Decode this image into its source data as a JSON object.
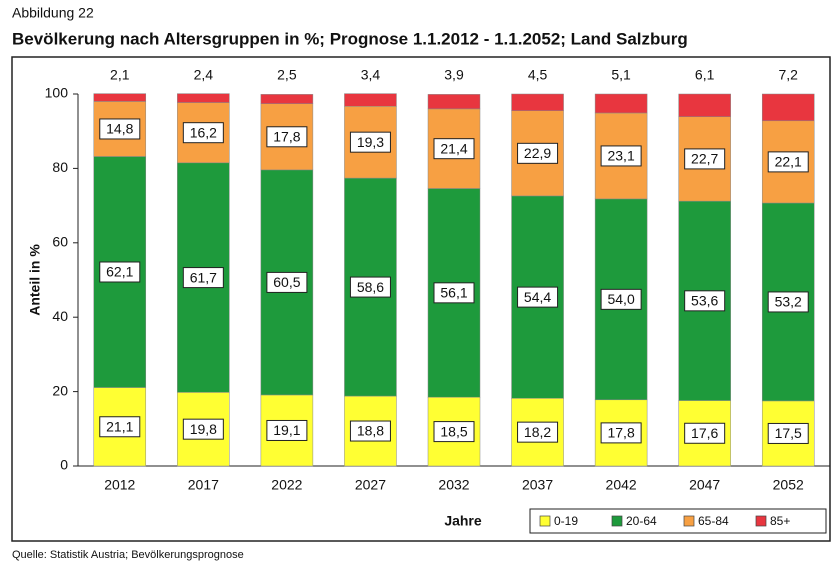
{
  "chart_data": {
    "type": "stacked_bar",
    "figure_label": "Abbildung 22",
    "title": "Bevölkerung nach Altersgruppen in %; Prognose 1.1.2012 - 1.1.2052; Land Salzburg",
    "x_label": "Jahre",
    "y_label": "Anteil in %",
    "source": "Quelle: Statistik Austria; Bevölkerungsprognose",
    "categories": [
      "2012",
      "2017",
      "2022",
      "2027",
      "2032",
      "2037",
      "2042",
      "2047",
      "2052"
    ],
    "series": [
      {
        "name": "0-19",
        "color": "#ffff33",
        "values": [
          21.1,
          19.8,
          19.1,
          18.8,
          18.5,
          18.2,
          17.8,
          17.6,
          17.5
        ],
        "value_labels": [
          "21,1",
          "19,8",
          "19,1",
          "18,8",
          "18,5",
          "18,2",
          "17,8",
          "17,6",
          "17,5"
        ]
      },
      {
        "name": "20-64",
        "color": "#1e9a3c",
        "values": [
          62.1,
          61.7,
          60.5,
          58.6,
          56.1,
          54.4,
          54.0,
          53.6,
          53.2
        ],
        "value_labels": [
          "62,1",
          "61,7",
          "60,5",
          "58,6",
          "56,1",
          "54,4",
          "54,0",
          "53,6",
          "53,2"
        ]
      },
      {
        "name": "65-84",
        "color": "#f7a043",
        "values": [
          14.8,
          16.2,
          17.8,
          19.3,
          21.4,
          22.9,
          23.1,
          22.7,
          22.1
        ],
        "value_labels": [
          "14,8",
          "16,2",
          "17,8",
          "19,3",
          "21,4",
          "22,9",
          "23,1",
          "22,7",
          "22,1"
        ]
      },
      {
        "name": "85+",
        "color": "#e8363f",
        "values": [
          2.1,
          2.4,
          2.5,
          3.4,
          3.9,
          4.5,
          5.1,
          6.1,
          7.2
        ],
        "value_labels": [
          "2,1",
          "2,4",
          "2,5",
          "3,4",
          "3,9",
          "4,5",
          "5,1",
          "6,1",
          "7,2"
        ]
      }
    ],
    "ylim": [
      0,
      100
    ],
    "yticks": [
      0,
      20,
      40,
      60,
      80,
      100
    ],
    "grid": false,
    "legend": "bottom-right"
  }
}
